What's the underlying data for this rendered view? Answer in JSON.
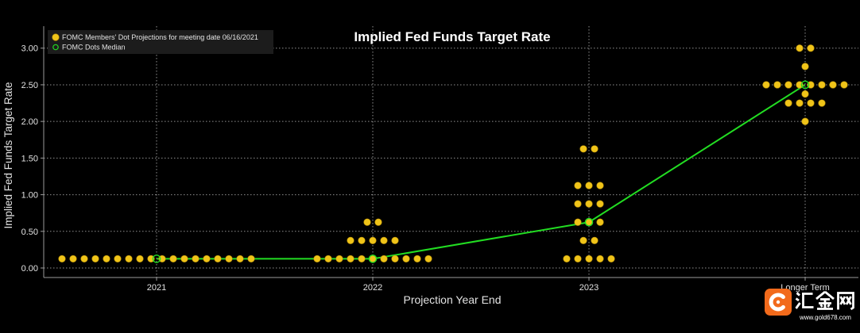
{
  "chart_data": {
    "type": "scatter",
    "title": "Implied Fed Funds Target Rate",
    "xlabel": "Projection Year End",
    "ylabel": "Implied Fed Funds Target Rate",
    "categories": [
      "2021",
      "2022",
      "2023",
      "Longer Term"
    ],
    "ylim": [
      -0.13,
      3.3
    ],
    "yticks": [
      0,
      0.5,
      1,
      1.5,
      2,
      2.5,
      3
    ],
    "ytick_labels": [
      "0.00",
      "0.50",
      "1.00",
      "1.50",
      "2.00",
      "2.50",
      "3.00"
    ],
    "grid": true,
    "legend_position": "top-left",
    "series": [
      {
        "name": "FOMC Members' Dot Projections for meeting date 06/16/2021",
        "type": "scatter",
        "marker": "filled-circle",
        "color": "#f0c419",
        "edge_color": "#b08a08",
        "points": [
          {
            "x": "2021",
            "y": 0.125,
            "count": 18
          },
          {
            "x": "2022",
            "y": 0.125,
            "count": 11
          },
          {
            "x": "2022",
            "y": 0.375,
            "count": 5
          },
          {
            "x": "2022",
            "y": 0.625,
            "count": 2
          },
          {
            "x": "2023",
            "y": 0.125,
            "count": 5
          },
          {
            "x": "2023",
            "y": 0.375,
            "count": 2
          },
          {
            "x": "2023",
            "y": 0.625,
            "count": 3
          },
          {
            "x": "2023",
            "y": 0.875,
            "count": 3
          },
          {
            "x": "2023",
            "y": 1.125,
            "count": 3
          },
          {
            "x": "2023",
            "y": 1.625,
            "count": 2
          },
          {
            "x": "Longer Term",
            "y": 2.0,
            "count": 1
          },
          {
            "x": "Longer Term",
            "y": 2.25,
            "count": 4
          },
          {
            "x": "Longer Term",
            "y": 2.375,
            "count": 1
          },
          {
            "x": "Longer Term",
            "y": 2.5,
            "count": 8
          },
          {
            "x": "Longer Term",
            "y": 2.75,
            "count": 1
          },
          {
            "x": "Longer Term",
            "y": 3.0,
            "count": 2
          }
        ]
      },
      {
        "name": "FOMC Dots Median",
        "type": "line",
        "marker": "hollow-circle",
        "color": "#22dd22",
        "values": [
          0.125,
          0.125,
          0.625,
          2.5
        ]
      }
    ]
  },
  "colors": {
    "background": "#000000",
    "grid": "#8f8f8f",
    "axis": "#9a9a9a",
    "text": "#e2e2e2",
    "legend_background": "#1c1c1c"
  },
  "watermark": {
    "icon": "gold678-logo-icon",
    "logo_text": "汇金网",
    "url": "www.gold678.com",
    "accent": "#f26a1b"
  }
}
